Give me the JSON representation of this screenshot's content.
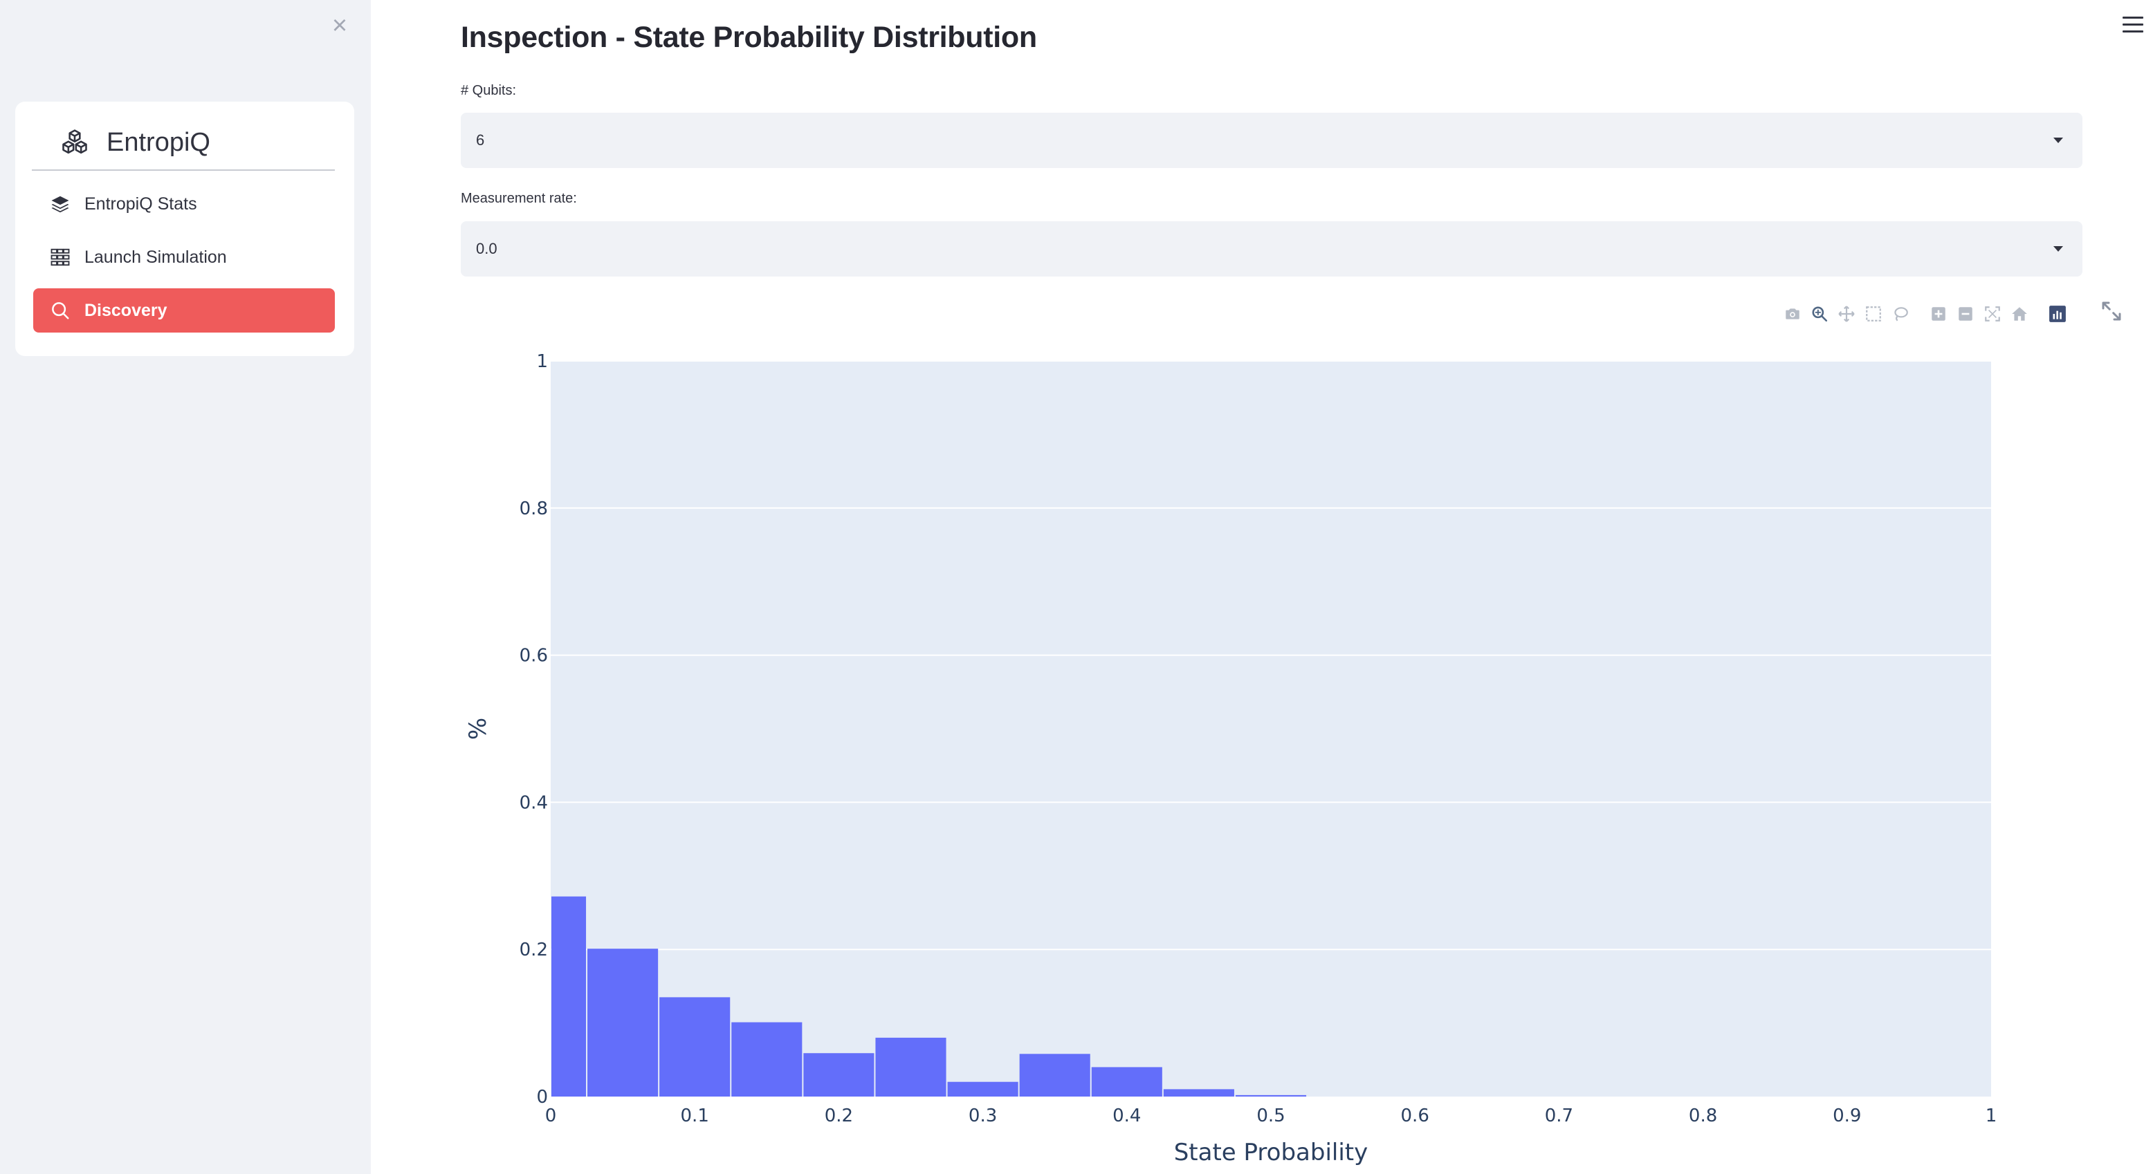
{
  "sidebar": {
    "close_icon": "close-icon",
    "brand": {
      "name": "EntropiQ",
      "icon": "cubes-icon"
    },
    "items": [
      {
        "label": "EntropiQ Stats",
        "icon": "layers-icon",
        "active": false
      },
      {
        "label": "Launch Simulation",
        "icon": "grid-icon",
        "active": false
      },
      {
        "label": "Discovery",
        "icon": "search-icon",
        "active": true
      }
    ],
    "active_color": "#ef5b5b"
  },
  "header": {
    "menu_icon": "hamburger-icon"
  },
  "page": {
    "title": "Inspection - State Probability Distribution",
    "qubits": {
      "label": "# Qubits:",
      "value": "6"
    },
    "measurement_rate": {
      "label": "Measurement rate:",
      "value": "0.0"
    }
  },
  "modebar": {
    "buttons": [
      "camera-icon",
      "zoom-icon",
      "pan-icon",
      "box-select-icon",
      "lasso-select-icon",
      "zoom-in-icon",
      "zoom-out-icon",
      "autoscale-icon",
      "reset-axes-icon",
      "plotly-logo-icon"
    ],
    "fullscreen": "fullscreen-icon"
  },
  "chart_data": {
    "type": "bar",
    "xlabel": "State Probability",
    "ylabel": "%",
    "xlim": [
      0,
      1
    ],
    "ylim": [
      0,
      1
    ],
    "bar_color": "#636efa",
    "plot_bg": "#e5ecf6",
    "x_ticks": [
      "0",
      "0.1",
      "0.2",
      "0.3",
      "0.4",
      "0.5",
      "0.6",
      "0.7",
      "0.8",
      "0.9",
      "1"
    ],
    "y_ticks": [
      "0",
      "0.2",
      "0.4",
      "0.6",
      "0.8",
      "1"
    ],
    "bins": [
      {
        "x0": 0.0,
        "x1": 0.025,
        "value": 0.272
      },
      {
        "x0": 0.025,
        "x1": 0.075,
        "value": 0.201
      },
      {
        "x0": 0.075,
        "x1": 0.125,
        "value": 0.135
      },
      {
        "x0": 0.125,
        "x1": 0.175,
        "value": 0.101
      },
      {
        "x0": 0.175,
        "x1": 0.225,
        "value": 0.059
      },
      {
        "x0": 0.225,
        "x1": 0.275,
        "value": 0.08
      },
      {
        "x0": 0.275,
        "x1": 0.325,
        "value": 0.02
      },
      {
        "x0": 0.325,
        "x1": 0.375,
        "value": 0.058
      },
      {
        "x0": 0.375,
        "x1": 0.425,
        "value": 0.04
      },
      {
        "x0": 0.425,
        "x1": 0.475,
        "value": 0.01
      },
      {
        "x0": 0.475,
        "x1": 0.525,
        "value": 0.002
      }
    ]
  }
}
